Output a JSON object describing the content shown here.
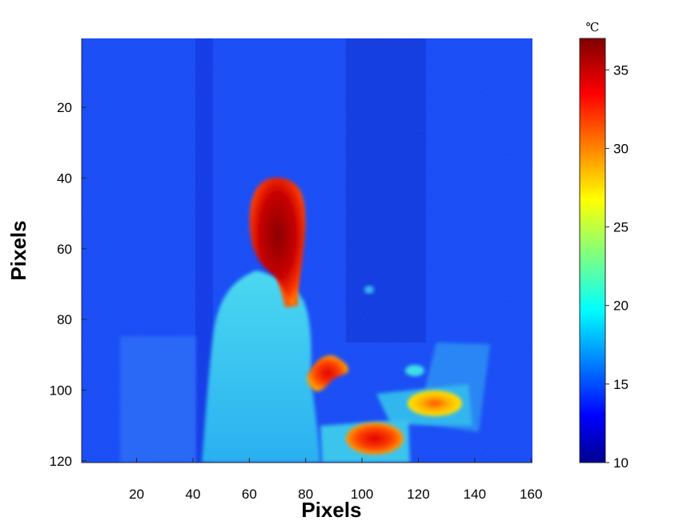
{
  "chart_data": {
    "type": "heatmap",
    "xlabel": "Pixels",
    "ylabel": "Pixels",
    "x_range": [
      1,
      160
    ],
    "y_range": [
      1,
      120
    ],
    "y_direction": "top-down",
    "x_ticks": [
      "20",
      "40",
      "60",
      "80",
      "100",
      "120",
      "140",
      "160"
    ],
    "y_ticks": [
      "20",
      "40",
      "60",
      "80",
      "100",
      "120"
    ],
    "colorbar": {
      "colormap": "jet",
      "min": 10,
      "max": 37,
      "unit": "℃",
      "ticks": [
        "10",
        "15",
        "20",
        "25",
        "30",
        "35"
      ]
    },
    "regions": [
      {
        "name": "background wall",
        "temp_c": 14.5
      },
      {
        "name": "person head",
        "center": [
          70,
          58
        ],
        "temp_c": 35
      },
      {
        "name": "person torso / lab coat",
        "center": [
          66,
          95
        ],
        "temp_c": 19
      },
      {
        "name": "hand",
        "center": [
          87,
          96
        ],
        "temp_c": 33
      },
      {
        "name": "warm object (lower center)",
        "center": [
          104,
          113
        ],
        "temp_c": 32
      },
      {
        "name": "warm object (right)",
        "center": [
          125,
          103
        ],
        "temp_c": 29
      },
      {
        "name": "laptop / desk area",
        "center": [
          124,
          100
        ],
        "temp_c": 18
      }
    ]
  }
}
